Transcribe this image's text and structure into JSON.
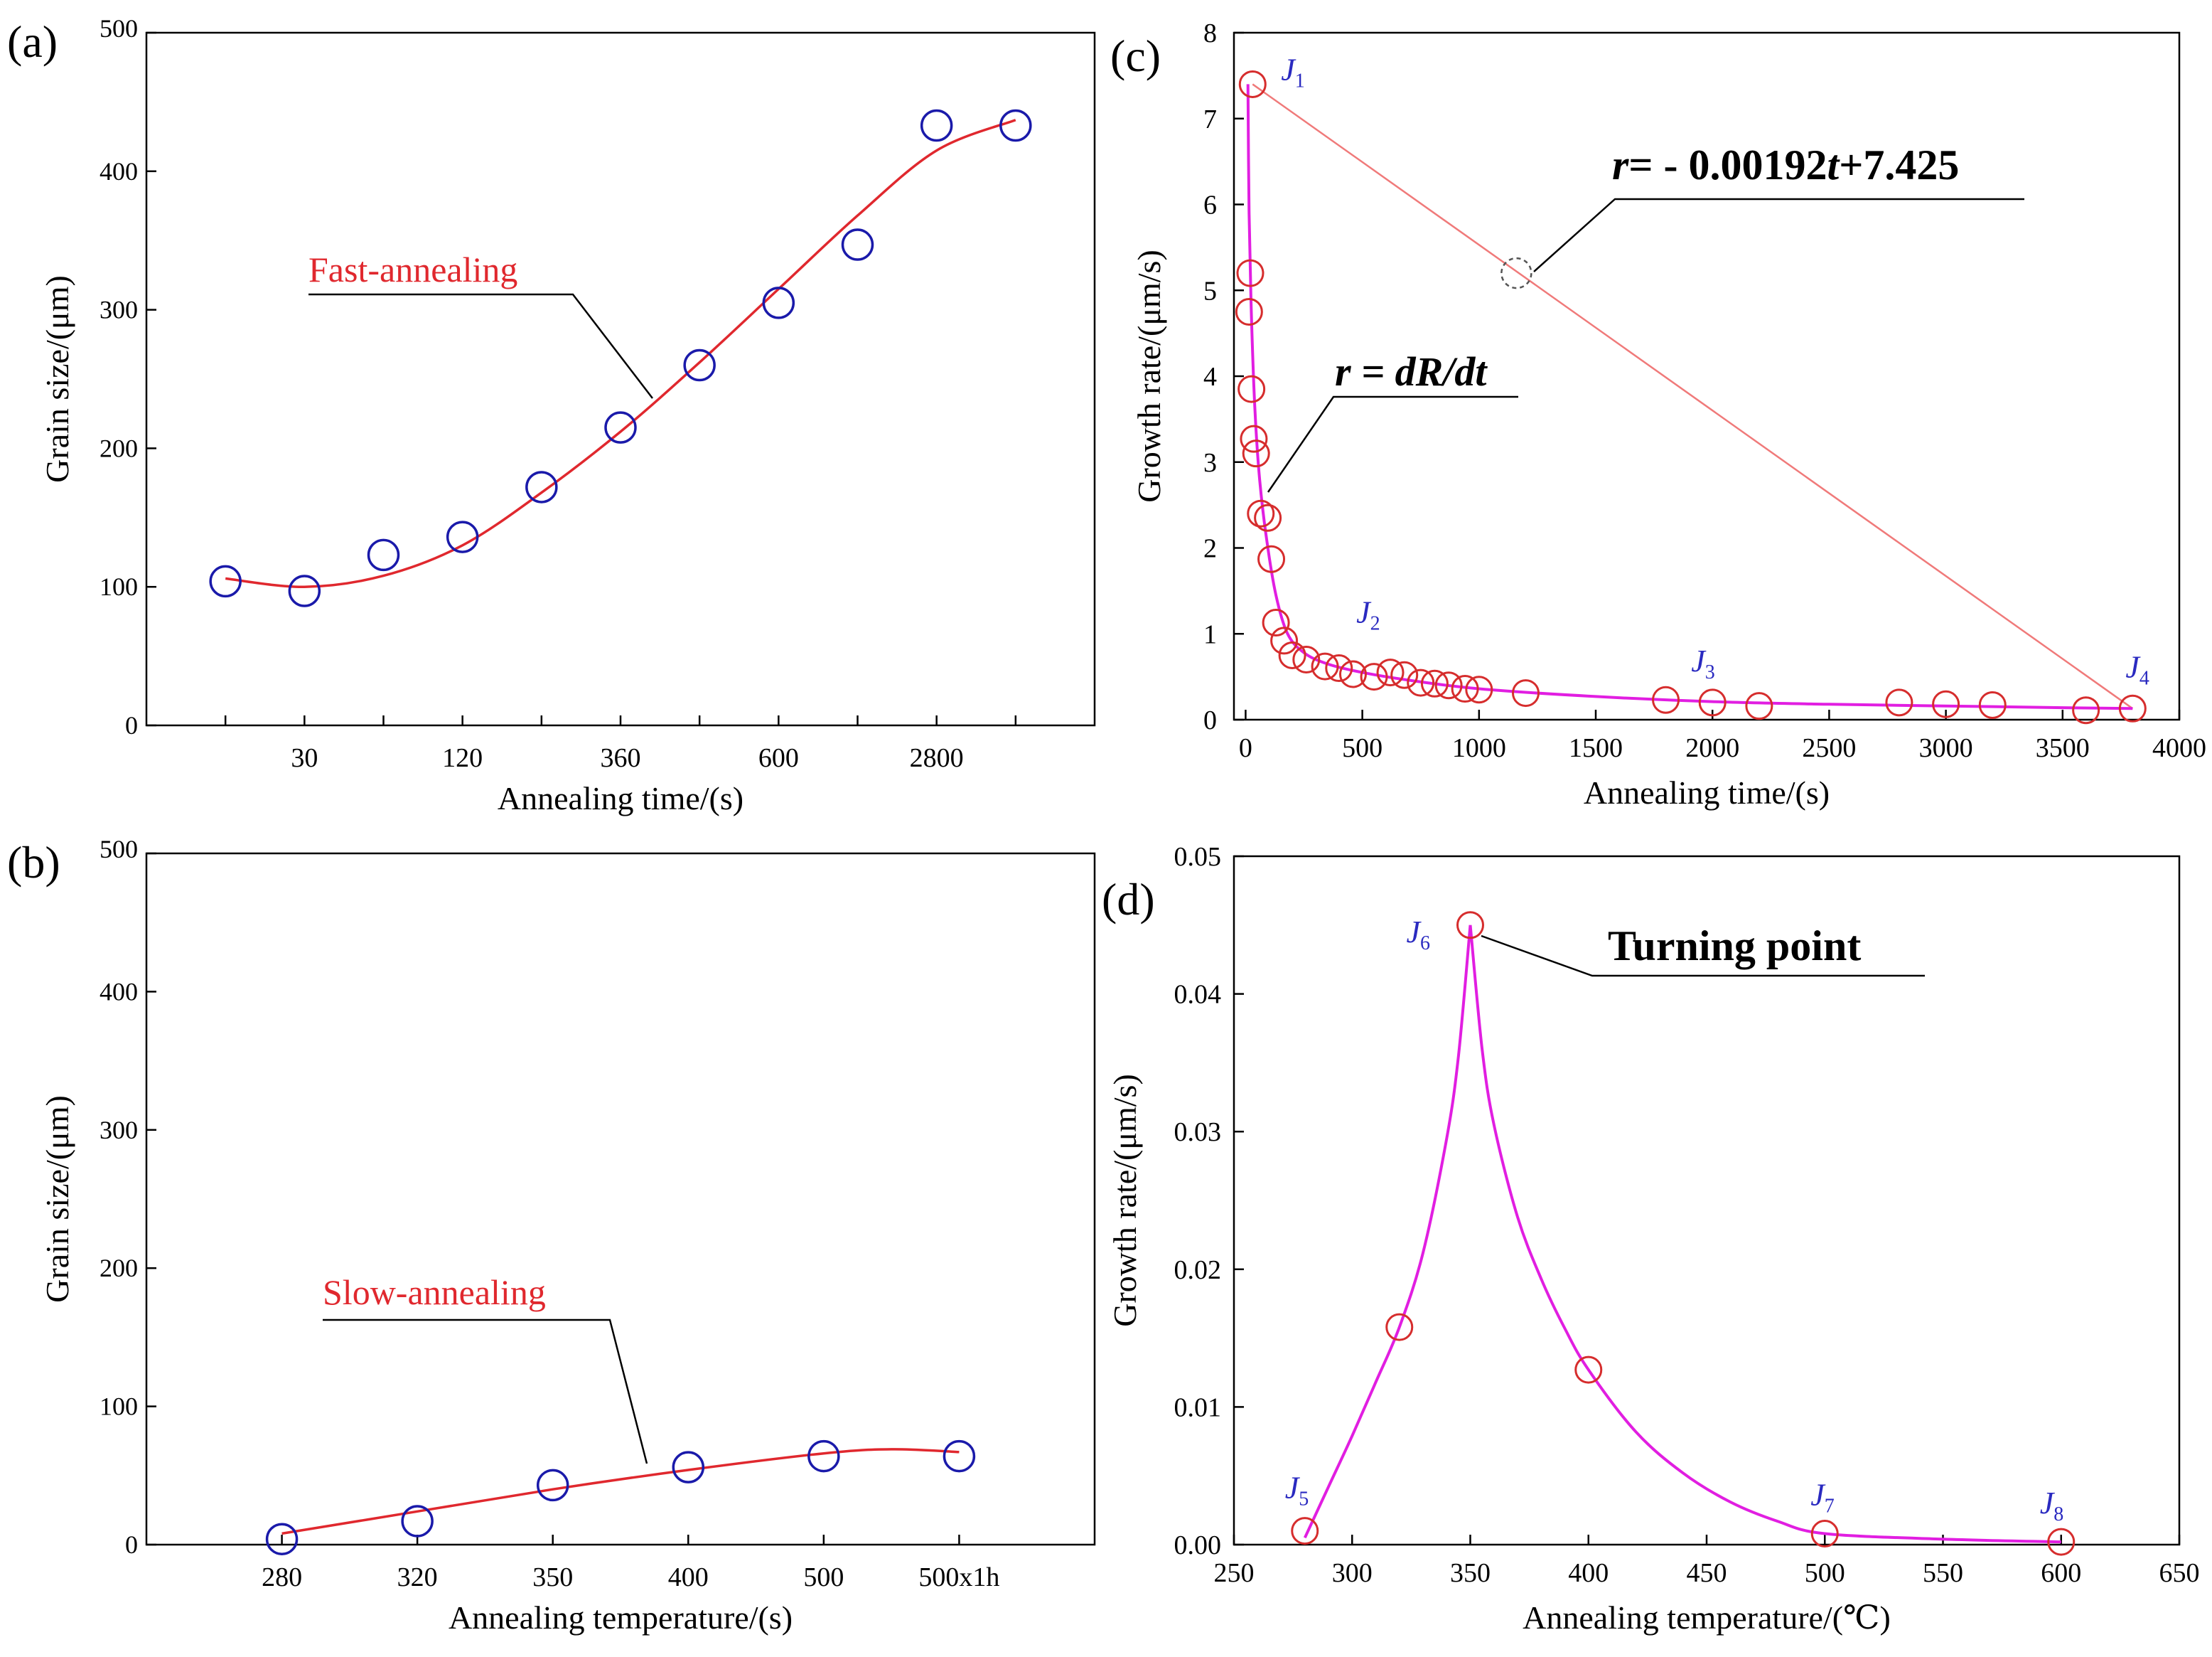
{
  "chart_data": [
    {
      "panel": "(a)",
      "type": "scatter",
      "xlabel": "Annealing time/(s)",
      "ylabel": "Grain size/(μm)",
      "categories": [
        "",
        "30",
        "",
        "120",
        "",
        "360",
        "",
        "600",
        "",
        "2800",
        ""
      ],
      "ylim": [
        0,
        500
      ],
      "yticks": [
        0,
        100,
        200,
        300,
        400,
        500
      ],
      "values": [
        104,
        97,
        123,
        136,
        172,
        215,
        260,
        305,
        347,
        433,
        433
      ],
      "fit_label": "Fast-annealing",
      "fit_points": [
        [
          0,
          106
        ],
        [
          1,
          100
        ],
        [
          2,
          108
        ],
        [
          3,
          130
        ],
        [
          4,
          168
        ],
        [
          5,
          212
        ],
        [
          6,
          262
        ],
        [
          7,
          315
        ],
        [
          8,
          368
        ],
        [
          9,
          415
        ],
        [
          10,
          437
        ]
      ],
      "marker_color": "#1a1aaa",
      "fit_color": "#e0282e"
    },
    {
      "panel": "(b)",
      "type": "scatter",
      "xlabel": "Annealing temperature/(s)",
      "ylabel": "Grain size/(μm)",
      "categories": [
        "280",
        "320",
        "350",
        "400",
        "500",
        "500x1h"
      ],
      "ylim": [
        0,
        500
      ],
      "yticks": [
        0,
        100,
        200,
        300,
        400,
        500
      ],
      "values": [
        4,
        17,
        43,
        56,
        64,
        64
      ],
      "fit_label": "Slow-annealing",
      "fit_points": [
        [
          0,
          8
        ],
        [
          1,
          24
        ],
        [
          2,
          40
        ],
        [
          3,
          54
        ],
        [
          4,
          66
        ],
        [
          4.5,
          69
        ],
        [
          5,
          67
        ]
      ],
      "marker_color": "#1a1aaa",
      "fit_color": "#e0282e"
    },
    {
      "panel": "(c)",
      "type": "scatter",
      "xlabel": "Annealing time/(s)",
      "ylabel": "Growth rate/(μm/s)",
      "xlim": [
        -50,
        4000
      ],
      "ylim": [
        0,
        8
      ],
      "xticks": [
        0,
        500,
        1000,
        1500,
        2000,
        2500,
        3000,
        3500,
        4000
      ],
      "yticks": [
        0,
        1,
        2,
        3,
        4,
        5,
        6,
        7,
        8
      ],
      "points": [
        [
          30,
          7.4
        ],
        [
          20,
          5.2
        ],
        [
          15,
          4.75
        ],
        [
          25,
          3.85
        ],
        [
          35,
          3.27
        ],
        [
          45,
          3.1
        ],
        [
          65,
          2.4
        ],
        [
          95,
          2.35
        ],
        [
          110,
          1.87
        ],
        [
          130,
          1.13
        ],
        [
          165,
          0.92
        ],
        [
          200,
          0.75
        ],
        [
          260,
          0.7
        ],
        [
          340,
          0.62
        ],
        [
          400,
          0.6
        ],
        [
          460,
          0.53
        ],
        [
          550,
          0.5
        ],
        [
          620,
          0.55
        ],
        [
          680,
          0.52
        ],
        [
          750,
          0.43
        ],
        [
          810,
          0.42
        ],
        [
          870,
          0.4
        ],
        [
          940,
          0.36
        ],
        [
          1000,
          0.35
        ],
        [
          1200,
          0.31
        ],
        [
          1800,
          0.23
        ],
        [
          2000,
          0.2
        ],
        [
          2200,
          0.16
        ],
        [
          2800,
          0.2
        ],
        [
          3000,
          0.18
        ],
        [
          3200,
          0.17
        ],
        [
          3600,
          0.11
        ],
        [
          3800,
          0.13
        ]
      ],
      "curve_points": [
        [
          10,
          7.4
        ],
        [
          15,
          5.9
        ],
        [
          25,
          4.7
        ],
        [
          40,
          3.6
        ],
        [
          60,
          2.8
        ],
        [
          90,
          2.1
        ],
        [
          130,
          1.45
        ],
        [
          180,
          1.0
        ],
        [
          250,
          0.78
        ],
        [
          350,
          0.65
        ],
        [
          500,
          0.55
        ],
        [
          700,
          0.46
        ],
        [
          1000,
          0.36
        ],
        [
          1500,
          0.27
        ],
        [
          2000,
          0.21
        ],
        [
          2500,
          0.18
        ],
        [
          3000,
          0.16
        ],
        [
          3500,
          0.14
        ],
        [
          3800,
          0.13
        ]
      ],
      "line_endpoints": [
        [
          30,
          7.4
        ],
        [
          3800,
          0.13
        ]
      ],
      "marker_point": [
        1160,
        5.2
      ],
      "annotations": {
        "equation_prefix": "r",
        "equation_mid": "= - 0.00192",
        "equation_var": "t",
        "equation_suffix": "+7.425",
        "rate_label": "r = dR/dt"
      },
      "point_labels": [
        {
          "j": "J",
          "sub": "1",
          "x": 30,
          "y": 7.4
        },
        {
          "j": "J",
          "sub": "2",
          "x": 200,
          "y": 0.75
        },
        {
          "j": "J",
          "sub": "3",
          "x": 2000,
          "y": 0.2
        },
        {
          "j": "J",
          "sub": "4",
          "x": 3800,
          "y": 0.13
        }
      ],
      "marker_color": "#d62d2d",
      "curve_color": "#e11ee1",
      "line_color": "#f07a7a"
    },
    {
      "panel": "(d)",
      "type": "scatter",
      "xlabel": "Annealing temperature/(℃)",
      "ylabel": "Growth rate/(μm/s)",
      "xlim": [
        250,
        650
      ],
      "ylim": [
        0,
        0.05
      ],
      "xticks": [
        250,
        300,
        350,
        400,
        450,
        500,
        550,
        600,
        650
      ],
      "ytick_labels": [
        "0.00",
        "0.01",
        "0.02",
        "0.03",
        "0.04",
        "0.05"
      ],
      "points": [
        [
          280,
          0.001
        ],
        [
          320,
          0.0158
        ],
        [
          350,
          0.045
        ],
        [
          400,
          0.0127
        ],
        [
          500,
          0.0008
        ],
        [
          600,
          0.0002
        ]
      ],
      "curve_points": [
        [
          280,
          0.0005
        ],
        [
          290,
          0.0042
        ],
        [
          300,
          0.0079
        ],
        [
          310,
          0.0118
        ],
        [
          320,
          0.0158
        ],
        [
          330,
          0.0212
        ],
        [
          340,
          0.0295
        ],
        [
          345,
          0.0355
        ],
        [
          350,
          0.045
        ],
        [
          355,
          0.036
        ],
        [
          360,
          0.0305
        ],
        [
          370,
          0.0238
        ],
        [
          380,
          0.0193
        ],
        [
          390,
          0.0157
        ],
        [
          400,
          0.0127
        ],
        [
          420,
          0.0082
        ],
        [
          440,
          0.0052
        ],
        [
          460,
          0.0031
        ],
        [
          480,
          0.0017
        ],
        [
          500,
          0.0008
        ],
        [
          550,
          0.0004
        ],
        [
          600,
          0.0002
        ]
      ],
      "annotation": "Turning point",
      "point_labels": [
        {
          "j": "J",
          "sub": "5",
          "x": 280,
          "y": 0.001
        },
        {
          "j": "J",
          "sub": "6",
          "x": 350,
          "y": 0.045
        },
        {
          "j": "J",
          "sub": "7",
          "x": 500,
          "y": 0.0008
        },
        {
          "j": "J",
          "sub": "8",
          "x": 600,
          "y": 0.0002
        }
      ],
      "marker_color": "#d62d2d",
      "curve_color": "#e11ee1"
    }
  ]
}
